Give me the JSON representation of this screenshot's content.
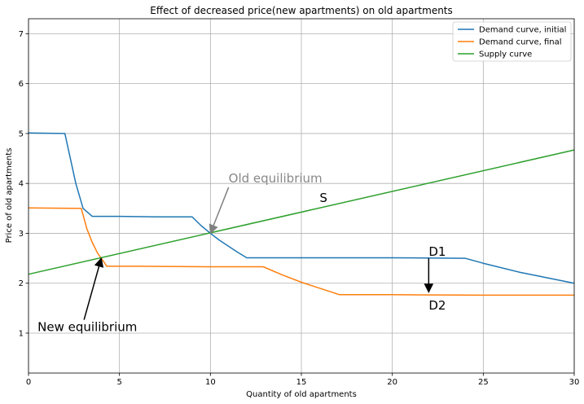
{
  "chart_data": {
    "type": "line",
    "title": "Effect of decreased price(new apartments) on old apartments",
    "xlabel": "Quantity of old apartments",
    "ylabel": "Price of old apartments",
    "xlim": [
      0,
      30
    ],
    "ylim": [
      0.2,
      7.3
    ],
    "xticks": [
      0,
      5,
      10,
      15,
      20,
      25,
      30
    ],
    "yticks": [
      1,
      2,
      3,
      4,
      5,
      6,
      7
    ],
    "grid": true,
    "legend_position": "top-right",
    "series": [
      {
        "name": "Demand curve, initial",
        "color": "#1f77b4",
        "x": [
          0,
          2,
          2.3,
          2.6,
          3.0,
          3.5,
          4.0,
          5.0,
          7.0,
          9.0,
          9.5,
          10.0,
          10.5,
          11.0,
          11.5,
          12.0,
          15.0,
          20.0,
          24.0,
          25.0,
          27.0,
          30.0
        ],
        "y": [
          5.01,
          5.0,
          4.5,
          4.0,
          3.5,
          3.34,
          3.34,
          3.34,
          3.33,
          3.33,
          3.15,
          3.0,
          2.86,
          2.74,
          2.62,
          2.51,
          2.51,
          2.51,
          2.5,
          2.4,
          2.22,
          2.0
        ]
      },
      {
        "name": "Demand curve, final",
        "color": "#ff7f0e",
        "x": [
          0,
          2.9,
          3.2,
          3.5,
          3.8,
          4.1,
          4.3,
          6.0,
          10.0,
          12.9,
          14.0,
          15.0,
          16.0,
          17.1,
          20.0,
          25.0,
          30.0
        ],
        "y": [
          3.51,
          3.5,
          3.1,
          2.82,
          2.6,
          2.45,
          2.34,
          2.34,
          2.33,
          2.33,
          2.16,
          2.02,
          1.9,
          1.77,
          1.77,
          1.76,
          1.76
        ]
      },
      {
        "name": "Supply curve",
        "color": "#2ca02c",
        "x": [
          0,
          30
        ],
        "y": [
          2.18,
          4.67
        ]
      }
    ],
    "annotations": [
      {
        "text": "Old equilibrium",
        "x": 11.0,
        "y": 4.02,
        "xy": [
          10.0,
          3.0
        ],
        "color": "#888888",
        "arrow_color": "#808080",
        "size": "big"
      },
      {
        "text": "New equilibrium",
        "x": 0.5,
        "y": 1.04,
        "xy": [
          4.0,
          2.5
        ],
        "color": "#000000",
        "arrow_color": "#000000",
        "size": "big"
      },
      {
        "text": "S",
        "x": 16.0,
        "y": 3.63,
        "color": "#000000",
        "size": "big"
      },
      {
        "text": "D1",
        "x": 22.0,
        "y": 2.55,
        "color": "#000000",
        "size": "big"
      },
      {
        "text": "D2",
        "x": 22.0,
        "y": 1.47,
        "color": "#000000",
        "size": "big"
      }
    ],
    "shift_arrow": {
      "from": [
        22.0,
        2.5
      ],
      "to": [
        22.0,
        1.82
      ]
    }
  }
}
